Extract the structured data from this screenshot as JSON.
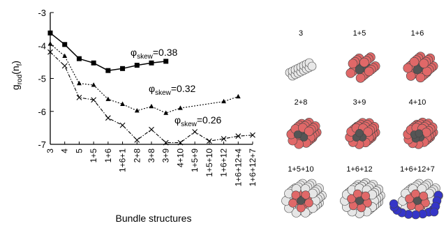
{
  "chart_data": {
    "type": "line",
    "categories": [
      "3",
      "4",
      "5",
      "1+5",
      "1+6",
      "1+6+1",
      "2+8",
      "3+8",
      "3+9",
      "4+10",
      "1+5+9",
      "1+5+10",
      "1+6+12",
      "1+6+12+4",
      "1+6+12+7"
    ],
    "ylabel_main": "g",
    "ylabel_sub": "rod",
    "ylabel_tail": "(n",
    "ylabel_sub2": "f",
    "ylabel_end": ")",
    "xlabel": "Bundle structures",
    "ylim": [
      -7,
      -3
    ],
    "yticks": [
      "-3",
      "-4",
      "-5",
      "-6",
      "-7"
    ],
    "grid": false,
    "series": [
      {
        "label_main": "φ",
        "label_sub": "skew",
        "label_value": "=0.38",
        "marker": "square",
        "line": "solid",
        "values": [
          -3.62,
          -3.97,
          -4.4,
          -4.53,
          -4.76,
          -4.7,
          -4.6,
          -4.53,
          -4.48,
          null,
          null,
          null,
          null,
          null,
          null
        ]
      },
      {
        "label_main": "φ",
        "label_sub": "skew",
        "label_value": "=0.32",
        "marker": "triangle",
        "line": "dotted",
        "values": [
          -3.95,
          -4.32,
          -5.15,
          -5.2,
          -5.63,
          -5.78,
          -5.98,
          -5.85,
          -6.05,
          -5.9,
          null,
          null,
          -5.7,
          -5.55,
          null
        ]
      },
      {
        "label_main": "φ",
        "label_sub": "skew",
        "label_value": "=0.26",
        "marker": "x",
        "line": "dashdot",
        "values": [
          -4.2,
          -4.62,
          -5.58,
          -5.65,
          -6.2,
          -6.42,
          -6.87,
          -6.55,
          -6.95,
          -6.95,
          -6.62,
          -6.9,
          -6.83,
          -6.75,
          -6.72
        ]
      }
    ],
    "structures": [
      {
        "label": "3",
        "outer": 0,
        "colors": [
          "#e06868",
          "#e06868",
          "#e06868"
        ]
      },
      {
        "label": "1+5",
        "outer": 0
      },
      {
        "label": "1+6",
        "outer": 0
      },
      {
        "label": "2+8",
        "outer": 0
      },
      {
        "label": "3+9",
        "outer": 0
      },
      {
        "label": "4+10",
        "outer": 0
      },
      {
        "label": "1+5+10",
        "outer": 1
      },
      {
        "label": "1+6+12",
        "outer": 1
      },
      {
        "label": "1+6+12+7",
        "outer": 2
      }
    ],
    "colors": {
      "core": "#555555",
      "middle": "#e06868",
      "outer_white": "#e6e6e6",
      "outer_blue": "#3535c8",
      "edge": "#444444"
    }
  }
}
